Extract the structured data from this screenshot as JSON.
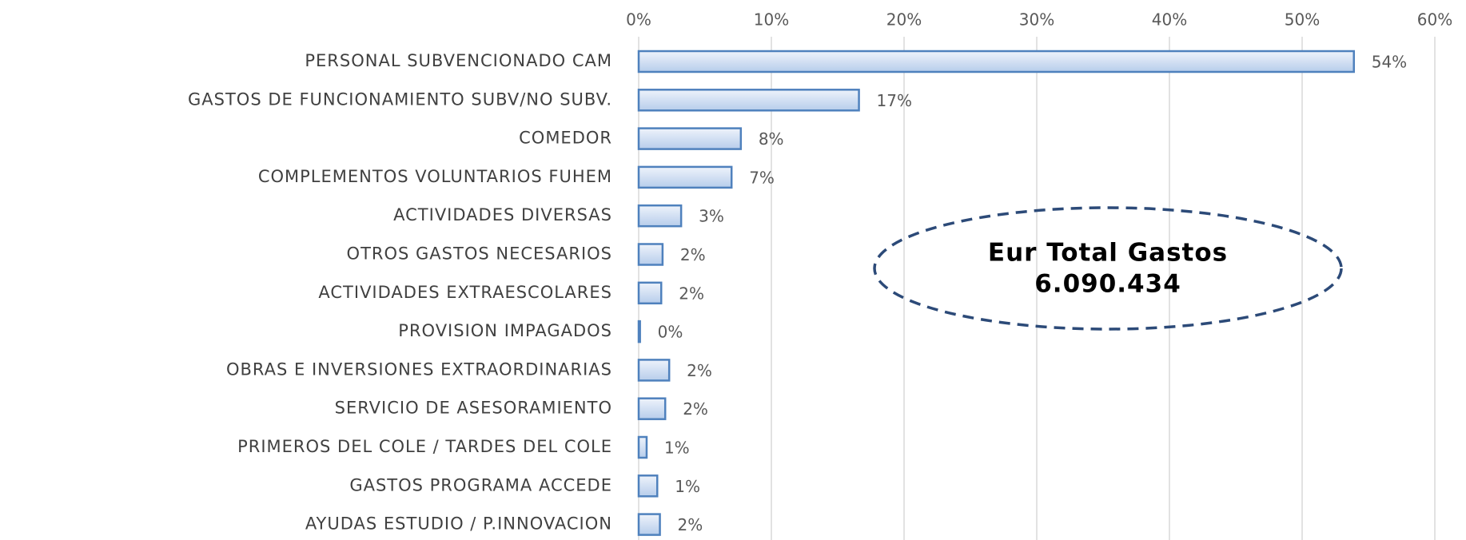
{
  "chart_data": {
    "type": "barh",
    "categories": [
      "PERSONAL SUBVENCIONADO CAM",
      "GASTOS DE FUNCIONAMIENTO SUBV/NO SUBV.",
      "COMEDOR",
      "COMPLEMENTOS VOLUNTARIOS FUHEM",
      "ACTIVIDADES DIVERSAS",
      "OTROS GASTOS NECESARIOS",
      "ACTIVIDADES EXTRAESCOLARES",
      "PROVISION IMPAGADOS",
      "OBRAS E INVERSIONES EXTRAORDINARIAS",
      "SERVICIO DE ASESORAMIENTO",
      "PRIMEROS DEL COLE / TARDES DEL COLE",
      "GASTOS PROGRAMA ACCEDE",
      "AYUDAS ESTUDIO / P.INNOVACION"
    ],
    "values": [
      53.9,
      16.6,
      7.7,
      7.0,
      3.2,
      1.8,
      1.7,
      0.1,
      2.3,
      2.0,
      0.6,
      1.4,
      1.6
    ],
    "value_labels": [
      "54%",
      "17%",
      "8%",
      "7%",
      "3%",
      "2%",
      "2%",
      "0%",
      "2%",
      "2%",
      "1%",
      "1%",
      "2%"
    ],
    "color": "#4f81bd",
    "xlim": [
      0,
      60
    ],
    "xticks": [
      {
        "value": 0,
        "label": "0%"
      },
      {
        "value": 10,
        "label": "10%"
      },
      {
        "value": 20,
        "label": "20%"
      },
      {
        "value": 30,
        "label": "30%"
      },
      {
        "value": 40,
        "label": "40%"
      },
      {
        "value": 50,
        "label": "50%"
      },
      {
        "value": 60,
        "label": "60%"
      }
    ],
    "grid": true,
    "annotation": [
      "Eur Total Gastos",
      "6.090.434"
    ]
  }
}
